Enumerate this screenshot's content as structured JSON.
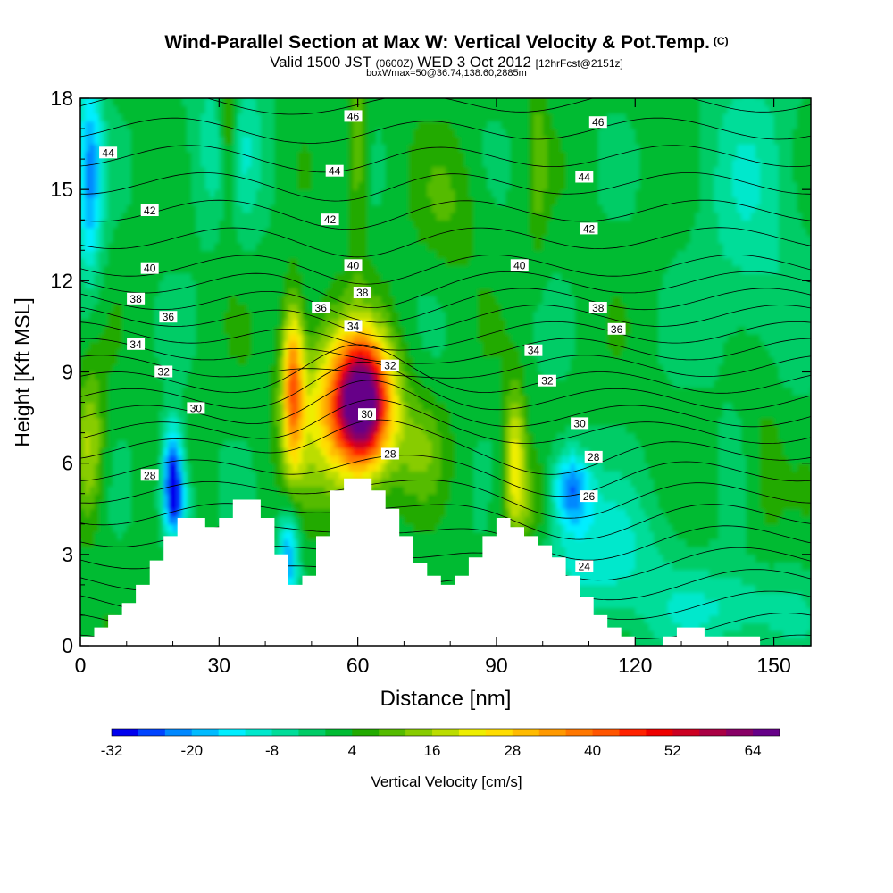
{
  "title": {
    "main": "Wind-Parallel Section at Max W: Vertical Velocity & Pot.Temp.",
    "copyright": "(C)",
    "valid_prefix": "Valid 1500 JST",
    "valid_utc": "(0600Z)",
    "valid_date": "WED 3 Oct 2012",
    "forecast": "[12hrFcst@2151z]",
    "box_info": "boxWmax=50@36.74,138.60,2885m"
  },
  "colors": {
    "terrain": "#ffffff",
    "isentrope": "#000000"
  },
  "chart_data": {
    "type": "heatmap",
    "xlabel": "Distance [nm]",
    "ylabel": "Height [Kft MSL]",
    "xlim": [
      0,
      158
    ],
    "ylim": [
      0,
      18
    ],
    "x_ticks": [
      0,
      30,
      60,
      90,
      120,
      150
    ],
    "y_ticks": [
      0,
      3,
      6,
      9,
      12,
      15,
      18
    ],
    "colorbar": {
      "label": "Vertical Velocity [cm/s]",
      "tick_labels": [
        -32,
        -20,
        -8,
        4,
        16,
        28,
        40,
        52,
        64
      ],
      "levels": [
        -32,
        -28,
        -24,
        -20,
        -16,
        -12,
        -8,
        -4,
        0,
        4,
        8,
        12,
        16,
        20,
        24,
        28,
        32,
        36,
        40,
        44,
        48,
        52,
        56,
        60,
        64,
        68
      ],
      "colors": [
        "#0000ee",
        "#0044ff",
        "#0088ff",
        "#00bbff",
        "#00eeff",
        "#00e8cc",
        "#00dd99",
        "#00cc66",
        "#00bb33",
        "#22aa00",
        "#55bb00",
        "#88cc00",
        "#bbdd00",
        "#eeee00",
        "#ffdd00",
        "#ffbb00",
        "#ff9900",
        "#ff7700",
        "#ff5500",
        "#ff2200",
        "#ee0000",
        "#cc0022",
        "#aa0044",
        "#880066",
        "#660088"
      ]
    },
    "terrain": {
      "x": [
        0,
        3,
        3,
        6,
        6,
        9,
        9,
        12,
        12,
        15,
        15,
        18,
        18,
        21,
        21,
        27,
        27,
        30,
        30,
        33,
        33,
        39,
        39,
        42,
        42,
        45,
        45,
        48,
        48,
        51,
        51,
        54,
        54,
        57,
        57,
        60,
        60,
        63,
        63,
        66,
        66,
        69,
        69,
        72,
        72,
        75,
        75,
        78,
        78,
        81,
        81,
        84,
        84,
        87,
        87,
        90,
        90,
        93,
        93,
        96,
        96,
        99,
        99,
        102,
        102,
        105,
        105,
        108,
        108,
        111,
        111,
        114,
        114,
        117,
        117,
        120,
        120,
        123,
        123,
        126,
        126,
        129,
        129,
        132,
        132,
        135,
        135,
        147,
        147,
        150,
        150,
        158
      ],
      "y": [
        0.3,
        0.3,
        0.6,
        0.6,
        1.0,
        1.0,
        1.4,
        1.4,
        2.0,
        2.0,
        2.8,
        2.8,
        3.6,
        3.6,
        4.2,
        4.2,
        3.9,
        3.9,
        4.2,
        4.2,
        4.8,
        4.8,
        4.2,
        4.2,
        3.0,
        3.0,
        2.0,
        2.0,
        2.3,
        2.3,
        3.6,
        3.6,
        5.1,
        5.1,
        5.5,
        5.5,
        5.5,
        5.5,
        5.1,
        5.1,
        4.5,
        4.5,
        3.6,
        3.6,
        2.7,
        2.7,
        2.3,
        2.3,
        2.0,
        2.0,
        2.3,
        2.3,
        2.9,
        2.9,
        3.6,
        3.6,
        4.2,
        4.2,
        3.9,
        3.9,
        3.6,
        3.6,
        3.3,
        3.3,
        2.9,
        2.9,
        2.3,
        2.3,
        1.6,
        1.6,
        1.0,
        1.0,
        0.6,
        0.6,
        0.3,
        0.3,
        0.0,
        0.0,
        0.0,
        0.0,
        0.3,
        0.3,
        0.6,
        0.6,
        0.6,
        0.6,
        0.3,
        0.3,
        0.0,
        0.0,
        0.0
      ]
    },
    "theta_labels": [
      {
        "text": "44",
        "x": 6,
        "y": 16.2
      },
      {
        "text": "46",
        "x": 59,
        "y": 17.4
      },
      {
        "text": "46",
        "x": 112,
        "y": 17.2
      },
      {
        "text": "44",
        "x": 55,
        "y": 15.6
      },
      {
        "text": "44",
        "x": 109,
        "y": 15.4
      },
      {
        "text": "42",
        "x": 15,
        "y": 14.3
      },
      {
        "text": "42",
        "x": 54,
        "y": 14.0
      },
      {
        "text": "42",
        "x": 110,
        "y": 13.7
      },
      {
        "text": "40",
        "x": 15,
        "y": 12.4
      },
      {
        "text": "40",
        "x": 59,
        "y": 12.5
      },
      {
        "text": "40",
        "x": 95,
        "y": 12.5
      },
      {
        "text": "38",
        "x": 12,
        "y": 11.4
      },
      {
        "text": "38",
        "x": 61,
        "y": 11.6
      },
      {
        "text": "38",
        "x": 112,
        "y": 11.1
      },
      {
        "text": "36",
        "x": 19,
        "y": 10.8
      },
      {
        "text": "36",
        "x": 52,
        "y": 11.1
      },
      {
        "text": "36",
        "x": 116,
        "y": 10.4
      },
      {
        "text": "34",
        "x": 12,
        "y": 9.9
      },
      {
        "text": "34",
        "x": 59,
        "y": 10.5
      },
      {
        "text": "34",
        "x": 98,
        "y": 9.7
      },
      {
        "text": "32",
        "x": 18,
        "y": 9.0
      },
      {
        "text": "32",
        "x": 67,
        "y": 9.2
      },
      {
        "text": "32",
        "x": 101,
        "y": 8.7
      },
      {
        "text": "30",
        "x": 25,
        "y": 7.8
      },
      {
        "text": "30",
        "x": 62,
        "y": 7.6
      },
      {
        "text": "30",
        "x": 108,
        "y": 7.3
      },
      {
        "text": "28",
        "x": 15,
        "y": 5.6
      },
      {
        "text": "28",
        "x": 67,
        "y": 6.3
      },
      {
        "text": "28",
        "x": 111,
        "y": 6.2
      },
      {
        "text": "26",
        "x": 110,
        "y": 4.9
      },
      {
        "text": "24",
        "x": 109,
        "y": 2.6
      }
    ]
  }
}
